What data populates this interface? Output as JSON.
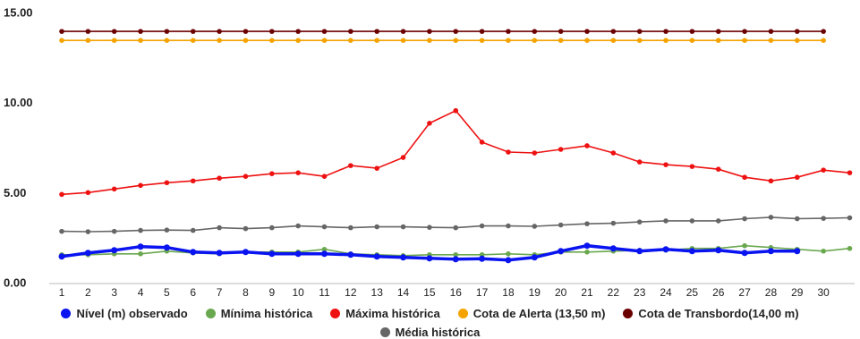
{
  "chart_data": {
    "type": "line",
    "categories": [
      "1",
      "2",
      "3",
      "4",
      "5",
      "6",
      "7",
      "8",
      "9",
      "10",
      "11",
      "12",
      "13",
      "14",
      "15",
      "16",
      "17",
      "18",
      "19",
      "20",
      "21",
      "22",
      "23",
      "24",
      "25",
      "26",
      "27",
      "28",
      "29",
      "30",
      null
    ],
    "ylim": [
      0,
      15
    ],
    "yticks": [
      {
        "value": 0,
        "label": "0.00"
      },
      {
        "value": 5,
        "label": "5.00"
      },
      {
        "value": 10,
        "label": "10.00"
      },
      {
        "value": 15,
        "label": "15.00"
      }
    ],
    "grid": false,
    "legend": "bottom",
    "series": [
      {
        "name": "Nível (m) observado",
        "color": "#0a14f0",
        "values": [
          1.5,
          1.7,
          1.85,
          2.05,
          2.0,
          1.75,
          1.7,
          1.75,
          1.65,
          1.65,
          1.65,
          1.6,
          1.5,
          1.45,
          1.4,
          1.35,
          1.38,
          1.3,
          1.45,
          1.8,
          2.1,
          1.95,
          1.8,
          1.9,
          1.8,
          1.85,
          1.7,
          1.8,
          1.8,
          null,
          null
        ]
      },
      {
        "name": "Mínima histórica",
        "color": "#6aa84f",
        "values": [
          1.6,
          1.6,
          1.65,
          1.65,
          1.8,
          1.7,
          1.65,
          1.75,
          1.75,
          1.75,
          1.9,
          1.65,
          1.6,
          1.55,
          1.6,
          1.6,
          1.6,
          1.65,
          1.6,
          1.75,
          1.75,
          1.8,
          1.85,
          1.85,
          1.95,
          1.95,
          2.1,
          2.0,
          1.9,
          1.8,
          1.95
        ]
      },
      {
        "name": "Máxima histórica",
        "color": "#ee1111",
        "values": [
          4.95,
          5.05,
          5.25,
          5.45,
          5.6,
          5.7,
          5.85,
          5.95,
          6.1,
          6.15,
          5.95,
          6.55,
          6.4,
          7.0,
          8.9,
          9.6,
          7.85,
          7.3,
          7.25,
          7.45,
          7.65,
          7.25,
          6.75,
          6.6,
          6.5,
          6.35,
          5.9,
          5.7,
          5.9,
          6.3,
          6.15
        ]
      },
      {
        "name": "Cota de Alerta (13,50 m)",
        "color": "#f4a300",
        "values": [
          13.5,
          13.5,
          13.5,
          13.5,
          13.5,
          13.5,
          13.5,
          13.5,
          13.5,
          13.5,
          13.5,
          13.5,
          13.5,
          13.5,
          13.5,
          13.5,
          13.5,
          13.5,
          13.5,
          13.5,
          13.5,
          13.5,
          13.5,
          13.5,
          13.5,
          13.5,
          13.5,
          13.5,
          13.5,
          13.5,
          null
        ]
      },
      {
        "name": "Cota de Transbordo(14,00 m)",
        "color": "#6b0000",
        "values": [
          14,
          14,
          14,
          14,
          14,
          14,
          14,
          14,
          14,
          14,
          14,
          14,
          14,
          14,
          14,
          14,
          14,
          14,
          14,
          14,
          14,
          14,
          14,
          14,
          14,
          14,
          14,
          14,
          14,
          14,
          null
        ]
      },
      {
        "name": "Média histórica",
        "color": "#666666",
        "values": [
          2.9,
          2.88,
          2.9,
          2.95,
          2.97,
          2.95,
          3.1,
          3.05,
          3.1,
          3.2,
          3.15,
          3.1,
          3.15,
          3.15,
          3.12,
          3.1,
          3.2,
          3.2,
          3.18,
          3.25,
          3.32,
          3.35,
          3.42,
          3.48,
          3.48,
          3.48,
          3.6,
          3.68,
          3.6,
          3.62,
          3.65
        ]
      }
    ]
  }
}
